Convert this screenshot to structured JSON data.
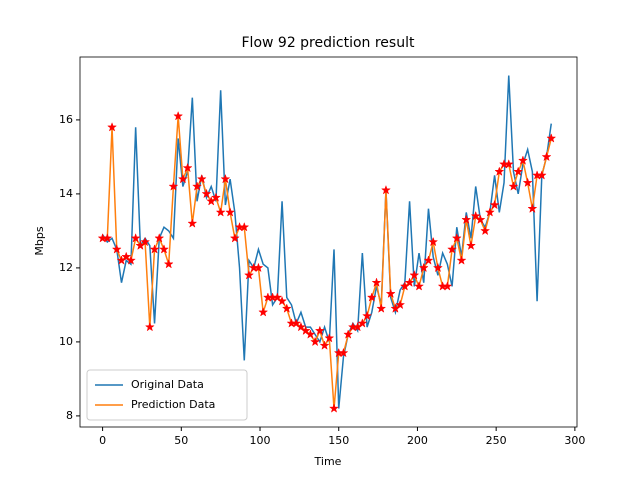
{
  "chart_data": {
    "type": "line",
    "title": "Flow 92 prediction result",
    "x_label": "Time",
    "y_label": "Mbps",
    "x": [
      0,
      3,
      6,
      9,
      12,
      15,
      18,
      21,
      24,
      27,
      30,
      33,
      36,
      39,
      42,
      45,
      48,
      51,
      54,
      57,
      60,
      63,
      66,
      69,
      72,
      75,
      78,
      81,
      84,
      87,
      90,
      93,
      96,
      99,
      102,
      105,
      108,
      111,
      114,
      117,
      120,
      123,
      126,
      129,
      132,
      135,
      138,
      141,
      144,
      147,
      150,
      153,
      156,
      159,
      162,
      165,
      168,
      171,
      174,
      177,
      180,
      183,
      186,
      189,
      192,
      195,
      198,
      201,
      204,
      207,
      210,
      213,
      216,
      219,
      222,
      225,
      228,
      231,
      234,
      237,
      240,
      243,
      246,
      249,
      252,
      255,
      258,
      261,
      264,
      267,
      270,
      273,
      276,
      279,
      282,
      285
    ],
    "series": [
      {
        "name": "Original Data",
        "color": "#1f77b4",
        "values": [
          12.9,
          12.7,
          12.8,
          12.5,
          11.6,
          12.2,
          12.1,
          15.8,
          12.6,
          12.8,
          12.6,
          10.5,
          12.8,
          13.1,
          13.0,
          12.8,
          15.5,
          14.2,
          14.6,
          16.6,
          13.8,
          14.5,
          13.9,
          14.2,
          13.8,
          16.8,
          13.7,
          14.4,
          13.5,
          12.0,
          9.5,
          12.2,
          12.0,
          12.5,
          12.1,
          12.0,
          11.0,
          11.2,
          13.8,
          11.2,
          11.0,
          10.5,
          10.8,
          10.4,
          10.4,
          10.2,
          10.0,
          10.4,
          10.0,
          12.5,
          8.2,
          9.6,
          10.2,
          10.5,
          10.3,
          12.4,
          10.4,
          10.8,
          11.5,
          11.0,
          14.1,
          11.2,
          10.8,
          11.4,
          11.6,
          13.8,
          11.5,
          12.4,
          11.6,
          13.6,
          12.3,
          11.8,
          12.4,
          12.1,
          11.5,
          13.1,
          12.3,
          13.5,
          12.8,
          14.2,
          13.3,
          13.1,
          13.5,
          14.5,
          13.5,
          14.3,
          17.2,
          14.6,
          14.0,
          14.8,
          15.2,
          14.6,
          11.1,
          14.5,
          15.0,
          15.9
        ]
      },
      {
        "name": "Prediction Data",
        "color": "#ff7f0e",
        "marker_color": "#ff0000",
        "values": [
          12.8,
          12.8,
          15.8,
          12.5,
          12.2,
          12.3,
          12.2,
          12.8,
          12.6,
          12.7,
          10.4,
          12.5,
          12.8,
          12.5,
          12.1,
          14.2,
          16.1,
          14.4,
          14.7,
          13.2,
          14.2,
          14.4,
          14.0,
          13.8,
          13.9,
          13.5,
          14.4,
          13.5,
          12.8,
          13.1,
          13.1,
          11.8,
          12.0,
          12.0,
          10.8,
          11.2,
          11.2,
          11.2,
          11.1,
          10.9,
          10.5,
          10.5,
          10.4,
          10.3,
          10.2,
          10.0,
          10.3,
          9.9,
          10.1,
          8.2,
          9.7,
          9.7,
          10.2,
          10.4,
          10.4,
          10.5,
          10.7,
          11.2,
          11.6,
          10.9,
          14.1,
          11.3,
          10.9,
          11.0,
          11.5,
          11.6,
          11.8,
          11.5,
          12.0,
          12.2,
          12.7,
          12.0,
          11.5,
          11.5,
          12.5,
          12.8,
          12.2,
          13.3,
          12.6,
          13.4,
          13.3,
          13.0,
          13.5,
          13.7,
          14.6,
          14.8,
          14.8,
          14.2,
          14.6,
          14.9,
          14.3,
          13.6,
          14.5,
          14.5,
          15.0,
          15.5
        ]
      }
    ],
    "xlim": [
      -14.35,
      301.35
    ],
    "ylim": [
      7.7,
      17.7
    ],
    "xticks": [
      0,
      50,
      100,
      150,
      200,
      250,
      300
    ],
    "yticks": [
      8,
      10,
      12,
      14,
      16
    ],
    "grid": false,
    "legend": "lower left"
  }
}
